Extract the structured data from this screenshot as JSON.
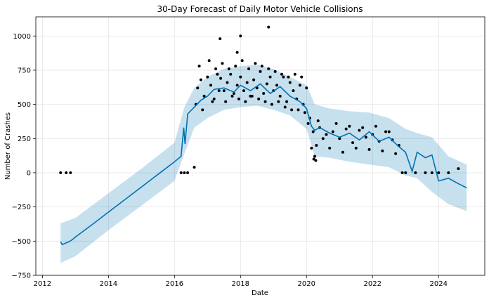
{
  "chart_data": {
    "type": "line",
    "title": "30-Day Forecast of Daily Motor Vehicle Collisions",
    "xlabel": "Date",
    "ylabel": "Number of Crashes",
    "xlim": [
      2011.8,
      2025.4
    ],
    "ylim": [
      -750,
      1140
    ],
    "x_ticks": [
      "2012",
      "2014",
      "2016",
      "2018",
      "2020",
      "2022",
      "2024"
    ],
    "y_ticks": [
      "1000",
      "750",
      "500",
      "250",
      "0",
      "−250",
      "−500",
      "−750"
    ],
    "grid": true,
    "colors": {
      "forecast_line": "#0072B2",
      "uncertainty_band": "#0072B2",
      "observed_points": "#000000",
      "grid": "#e5e5e5"
    },
    "series": [
      {
        "kind": "forecast",
        "x": [
          2012.55,
          2012.6,
          2012.8,
          2012.9,
          2013.0,
          2013.5,
          2014.0,
          2014.5,
          2015.0,
          2015.5,
          2016.0,
          2016.2,
          2016.28,
          2016.32,
          2016.4,
          2016.6,
          2016.8,
          2017.0,
          2017.2,
          2017.5,
          2017.8,
          2018.0,
          2018.3,
          2018.6,
          2018.9,
          2019.2,
          2019.5,
          2019.8,
          2020.0,
          2020.15,
          2020.25,
          2020.4,
          2020.7,
          2021.0,
          2021.3,
          2021.6,
          2021.9,
          2022.2,
          2022.5,
          2022.8,
          2023.0,
          2023.2,
          2023.35,
          2023.6,
          2023.8,
          2024.0,
          2024.3,
          2024.6,
          2024.85
        ],
        "y": [
          -505,
          -525,
          -505,
          -490,
          -470,
          -380,
          -288,
          -196,
          -104,
          -12,
          80,
          120,
          330,
          210,
          430,
          480,
          530,
          560,
          610,
          620,
          590,
          640,
          600,
          650,
          580,
          630,
          560,
          520,
          470,
          340,
          310,
          330,
          290,
          260,
          290,
          240,
          300,
          230,
          260,
          190,
          150,
          10,
          150,
          110,
          130,
          -60,
          -40,
          -80,
          -110
        ]
      },
      {
        "kind": "uncertainty_band",
        "x": [
          2012.55,
          2013.0,
          2014.0,
          2015.0,
          2016.0,
          2016.3,
          2016.6,
          2017.0,
          2017.5,
          2018.0,
          2018.5,
          2019.0,
          2019.5,
          2020.0,
          2020.25,
          2020.7,
          2021.3,
          2021.9,
          2022.5,
          2023.0,
          2023.35,
          2023.8,
          2024.3,
          2024.85
        ],
        "upper": [
          -370,
          -330,
          -150,
          30,
          220,
          480,
          620,
          700,
          760,
          780,
          790,
          760,
          700,
          640,
          500,
          470,
          450,
          440,
          400,
          320,
          290,
          260,
          120,
          60
        ],
        "lower": [
          -660,
          -610,
          -420,
          -240,
          -60,
          140,
          330,
          400,
          460,
          480,
          490,
          460,
          420,
          320,
          120,
          110,
          80,
          60,
          40,
          -20,
          -40,
          -140,
          -230,
          -280
        ]
      },
      {
        "kind": "observed",
        "x": [
          2012.55,
          2012.72,
          2012.85,
          2016.2,
          2016.3,
          2016.4,
          2016.6,
          2016.7,
          2016.8,
          2016.9,
          2017.0,
          2017.1,
          2017.2,
          2017.3,
          2017.4,
          2017.5,
          2017.6,
          2017.7,
          2017.8,
          2017.9,
          2018.0,
          2018.1,
          2018.2,
          2018.3,
          2018.4,
          2018.5,
          2018.6,
          2018.7,
          2018.8,
          2018.9,
          2019.0,
          2019.1,
          2019.2,
          2019.3,
          2019.4,
          2019.5,
          2019.6,
          2019.7,
          2019.8,
          2019.9,
          2020.0,
          2020.1,
          2020.2,
          2020.3,
          2020.4,
          2020.6,
          2020.8,
          2021.0,
          2021.2,
          2021.4,
          2021.6,
          2021.8,
          2022.0,
          2022.2,
          2022.4,
          2022.6,
          2022.8,
          2022.9,
          2023.0,
          2023.3,
          2023.6,
          2023.8,
          2024.0,
          2024.3,
          2024.6,
          2016.65,
          2016.75,
          2016.85,
          2017.05,
          2017.15,
          2017.25,
          2017.35,
          2017.45,
          2017.55,
          2017.65,
          2017.75,
          2017.85,
          2017.95,
          2018.05,
          2018.15,
          2018.25,
          2018.35,
          2018.45,
          2018.55,
          2018.65,
          2018.75,
          2018.85,
          2018.95,
          2019.05,
          2019.15,
          2019.25,
          2019.35,
          2019.45,
          2019.55,
          2019.65,
          2019.75,
          2019.85,
          2019.95,
          2020.05,
          2020.15,
          2020.25,
          2020.35,
          2020.5,
          2020.7,
          2020.9,
          2021.1,
          2021.3,
          2021.5,
          2021.7,
          2021.9,
          2022.1,
          2022.3,
          2022.5,
          2022.7,
          2017.38,
          2017.9,
          2018.0,
          2018.85,
          2020.22,
          2020.28
        ],
        "y": [
          0,
          0,
          0,
          0,
          0,
          0,
          40,
          620,
          680,
          560,
          700,
          640,
          540,
          720,
          690,
          600,
          660,
          720,
          580,
          640,
          700,
          600,
          660,
          560,
          680,
          620,
          740,
          580,
          650,
          700,
          600,
          640,
          560,
          700,
          520,
          660,
          600,
          540,
          640,
          500,
          620,
          400,
          300,
          200,
          330,
          280,
          300,
          250,
          320,
          220,
          310,
          260,
          280,
          230,
          300,
          240,
          200,
          0,
          0,
          0,
          0,
          0,
          0,
          0,
          30,
          500,
          780,
          460,
          820,
          520,
          760,
          600,
          800,
          520,
          760,
          560,
          780,
          540,
          820,
          520,
          760,
          560,
          800,
          540,
          780,
          520,
          760,
          500,
          740,
          520,
          720,
          480,
          700,
          460,
          720,
          460,
          700,
          440,
          360,
          180,
          120,
          380,
          250,
          180,
          360,
          150,
          340,
          180,
          330,
          170,
          340,
          160,
          300,
          140,
          980,
          880,
          1000,
          1065,
          100,
          90
        ]
      }
    ]
  }
}
